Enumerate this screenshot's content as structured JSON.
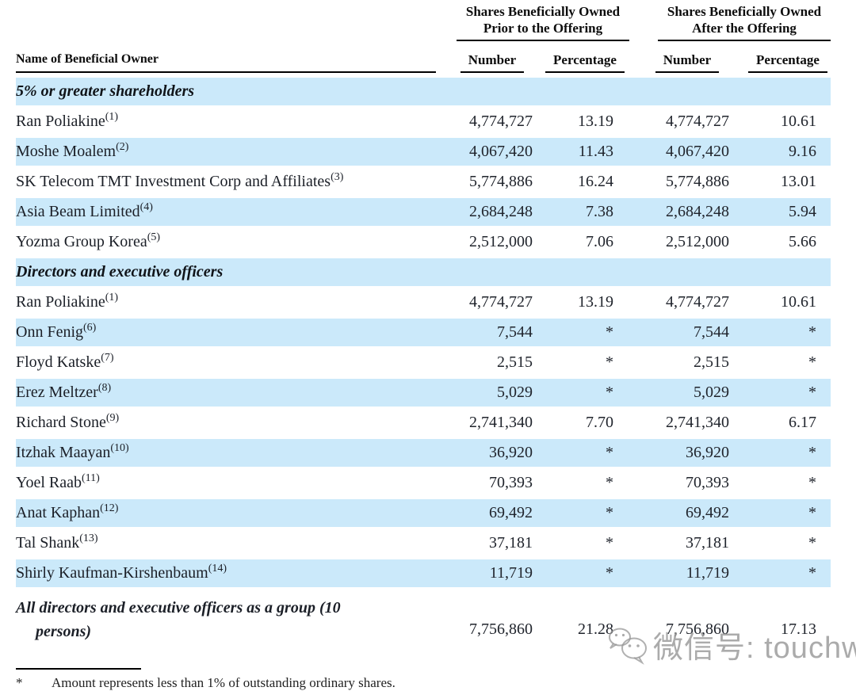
{
  "table": {
    "name_header": "Name of Beneficial Owner",
    "col_groups": [
      {
        "title_line1": "Shares Beneficially Owned",
        "title_line2": "Prior to the Offering"
      },
      {
        "title_line1": "Shares Beneficially Owned",
        "title_line2": "After the Offering"
      }
    ],
    "sub_headers": [
      "Number",
      "Percentage",
      "Number",
      "Percentage"
    ],
    "rows": [
      {
        "type": "section",
        "label": "5% or greater shareholders"
      },
      {
        "type": "data",
        "name": "Ran Poliakine",
        "footnote": "(1)",
        "prior_number": "4,774,727",
        "prior_percentage": "13.19",
        "after_number": "4,774,727",
        "after_percentage": "10.61"
      },
      {
        "type": "data",
        "name": "Moshe Moalem",
        "footnote": "(2)",
        "prior_number": "4,067,420",
        "prior_percentage": "11.43",
        "after_number": "4,067,420",
        "after_percentage": "9.16"
      },
      {
        "type": "data",
        "name": "SK Telecom TMT Investment Corp and Affiliates",
        "footnote": "(3)",
        "prior_number": "5,774,886",
        "prior_percentage": "16.24",
        "after_number": "5,774,886",
        "after_percentage": "13.01"
      },
      {
        "type": "data",
        "name": "Asia Beam Limited",
        "footnote": "(4)",
        "prior_number": "2,684,248",
        "prior_percentage": "7.38",
        "after_number": "2,684,248",
        "after_percentage": "5.94"
      },
      {
        "type": "data",
        "name": "Yozma Group Korea",
        "footnote": "(5)",
        "prior_number": "2,512,000",
        "prior_percentage": "7.06",
        "after_number": "2,512,000",
        "after_percentage": "5.66"
      },
      {
        "type": "section",
        "label": "Directors and executive officers"
      },
      {
        "type": "data",
        "name": "Ran Poliakine",
        "footnote": "(1)",
        "prior_number": "4,774,727",
        "prior_percentage": "13.19",
        "after_number": "4,774,727",
        "after_percentage": "10.61"
      },
      {
        "type": "data",
        "name": "Onn Fenig",
        "footnote": "(6)",
        "prior_number": "7,544",
        "prior_percentage": "*",
        "after_number": "7,544",
        "after_percentage": "*"
      },
      {
        "type": "data",
        "name": "Floyd Katske",
        "footnote": "(7)",
        "prior_number": "2,515",
        "prior_percentage": "*",
        "after_number": "2,515",
        "after_percentage": "*"
      },
      {
        "type": "data",
        "name": "Erez Meltzer",
        "footnote": "(8)",
        "prior_number": "5,029",
        "prior_percentage": "*",
        "after_number": "5,029",
        "after_percentage": "*"
      },
      {
        "type": "data",
        "name": "Richard Stone",
        "footnote": "(9)",
        "prior_number": "2,741,340",
        "prior_percentage": "7.70",
        "after_number": "2,741,340",
        "after_percentage": "6.17"
      },
      {
        "type": "data",
        "name": "Itzhak Maayan",
        "footnote": "(10)",
        "prior_number": "36,920",
        "prior_percentage": "*",
        "after_number": "36,920",
        "after_percentage": "*"
      },
      {
        "type": "data",
        "name": "Yoel Raab",
        "footnote": "(11)",
        "prior_number": "70,393",
        "prior_percentage": "*",
        "after_number": "70,393",
        "after_percentage": "*"
      },
      {
        "type": "data",
        "name": "Anat Kaphan",
        "footnote": "(12)",
        "prior_number": "69,492",
        "prior_percentage": "*",
        "after_number": "69,492",
        "after_percentage": "*"
      },
      {
        "type": "data",
        "name": "Tal Shank",
        "footnote": "(13)",
        "prior_number": "37,181",
        "prior_percentage": "*",
        "after_number": "37,181",
        "after_percentage": "*"
      },
      {
        "type": "data",
        "name": "Shirly Kaufman-Kirshenbaum",
        "footnote": "(14)",
        "prior_number": "11,719",
        "prior_percentage": "*",
        "after_number": "11,719",
        "after_percentage": "*"
      },
      {
        "type": "group",
        "label_lines": [
          "All directors and executive officers as a group (10",
          "persons)"
        ],
        "prior_number": "7,756,860",
        "prior_percentage": "21.28",
        "after_number": "7,756,860",
        "after_percentage": "17.13"
      }
    ]
  },
  "footnote": {
    "symbol": "*",
    "text": "Amount represents less than 1% of outstanding ordinary shares."
  },
  "watermark": {
    "icon": "wechat-icon",
    "text": "微信号: touchweb"
  },
  "colors": {
    "row_highlight": "#cbe9fa",
    "rule": "#000000",
    "text": "#1b1f27",
    "watermark": "#969696"
  }
}
